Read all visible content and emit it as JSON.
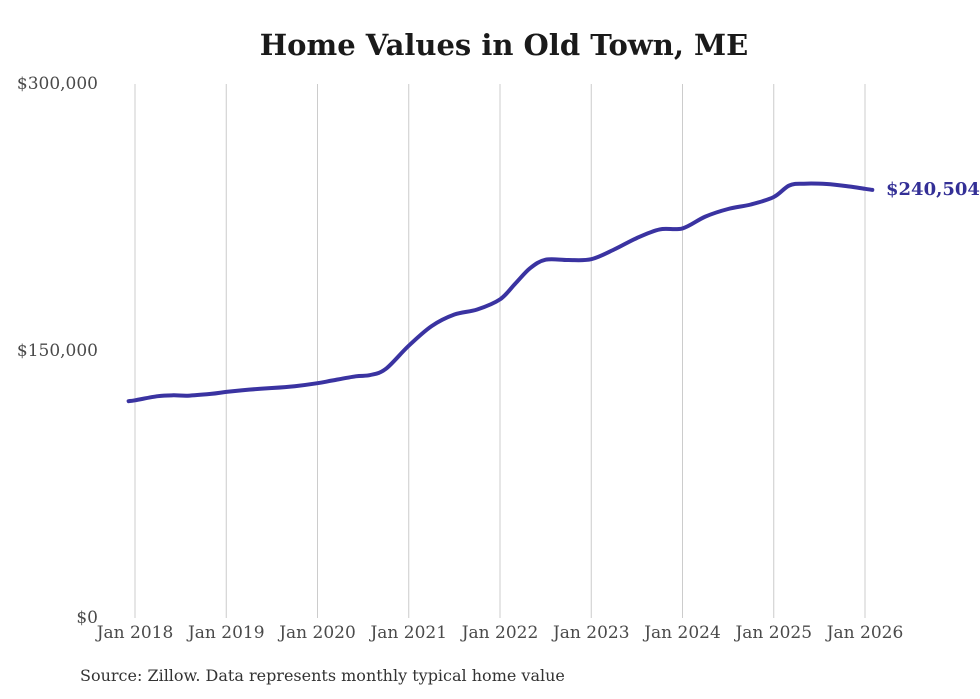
{
  "page": {
    "title": "Home Values in Old Town, ME",
    "end_label": "$240,504",
    "source_note": "Source: Zillow. Data represents monthly typical home value"
  },
  "colors": {
    "line": "#3a33a1",
    "end_label": "#332f96",
    "grid": "#cccccc",
    "tick_text": "#4a4a4a",
    "title_text": "#1a1a1a",
    "source_text": "#333333"
  },
  "chart_data": {
    "type": "line",
    "title": "Home Values in Old Town, ME",
    "x_unit": "decimal_year",
    "xlim": [
      2017.85,
      2026.25
    ],
    "ylim": [
      0,
      300000
    ],
    "grid": "vertical-only",
    "legend": "none",
    "yticks": [
      {
        "label": "$0",
        "value": 0
      },
      {
        "label": "$150,000",
        "value": 150000
      },
      {
        "label": "$300,000",
        "value": 300000
      }
    ],
    "xticks": [
      {
        "label": "Jan 2018",
        "year": 2018
      },
      {
        "label": "Jan 2019",
        "year": 2019
      },
      {
        "label": "Jan 2020",
        "year": 2020
      },
      {
        "label": "Jan 2021",
        "year": 2021
      },
      {
        "label": "Jan 2022",
        "year": 2022
      },
      {
        "label": "Jan 2023",
        "year": 2023
      },
      {
        "label": "Jan 2024",
        "year": 2024
      },
      {
        "label": "Jan 2025",
        "year": 2025
      },
      {
        "label": "Jan 2026",
        "year": 2026
      }
    ],
    "series": [
      {
        "name": "Monthly typical home value",
        "x": [
          2017.93,
          2018.0,
          2018.25,
          2018.42,
          2018.58,
          2018.83,
          2019.0,
          2019.25,
          2019.5,
          2019.75,
          2020.0,
          2020.17,
          2020.42,
          2020.58,
          2020.75,
          2021.0,
          2021.25,
          2021.5,
          2021.75,
          2022.0,
          2022.17,
          2022.33,
          2022.5,
          2022.75,
          2023.0,
          2023.25,
          2023.5,
          2023.75,
          2024.0,
          2024.25,
          2024.5,
          2024.75,
          2025.0,
          2025.17,
          2025.33,
          2025.58,
          2025.83,
          2026.0,
          2026.08
        ],
        "values": [
          121800,
          122300,
          124600,
          125100,
          124900,
          125900,
          127000,
          128300,
          129200,
          130200,
          131900,
          133500,
          135800,
          136500,
          140000,
          153000,
          164000,
          170500,
          173300,
          179000,
          188000,
          196500,
          201300,
          201100,
          201600,
          207000,
          213500,
          218300,
          218900,
          225500,
          229800,
          232300,
          236500,
          243000,
          244000,
          243800,
          242400,
          241100,
          240504
        ]
      }
    ],
    "annotation": {
      "label": "$240,504",
      "value": 240504,
      "position": "line-end"
    }
  }
}
